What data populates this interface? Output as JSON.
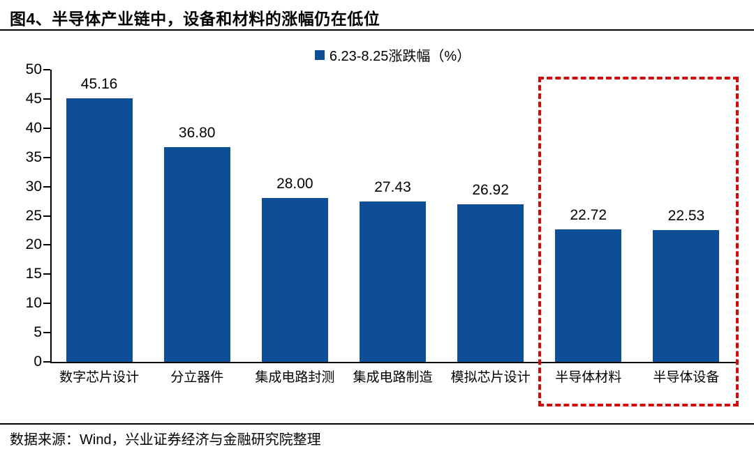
{
  "page": {
    "title": "图4、半导体产业链中，设备和材料的涨幅仍在低位",
    "source_note": "数据来源：Wind，兴业证券经济与金融研究院整理"
  },
  "chart_data": {
    "type": "bar",
    "title": "图4、半导体产业链中，设备和材料的涨幅仍在低位",
    "legend": "6.23-8.25涨跌幅（%）",
    "legend_position": "top-center",
    "categories": [
      "数字芯片设计",
      "分立器件",
      "集成电路封测",
      "集成电路制造",
      "模拟芯片设计",
      "半导体材料",
      "半导体设备"
    ],
    "values": [
      45.16,
      36.8,
      28.0,
      27.43,
      26.92,
      22.72,
      22.53
    ],
    "value_labels": [
      "45.16",
      "36.80",
      "28.00",
      "27.43",
      "26.92",
      "22.72",
      "22.53"
    ],
    "xlabel": "",
    "ylabel": "",
    "ylim": [
      0,
      50
    ],
    "yticks": [
      0,
      5,
      10,
      15,
      20,
      25,
      30,
      35,
      40,
      45,
      50
    ],
    "grid": false,
    "bar_color": "#0d4e96",
    "highlight": {
      "style": "red-dashed-box",
      "color": "#d20a0a",
      "start_index": 5,
      "end_index": 6,
      "categories": [
        "半导体材料",
        "半导体设备"
      ]
    }
  }
}
